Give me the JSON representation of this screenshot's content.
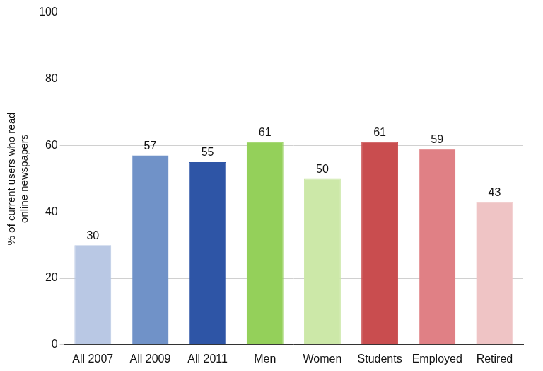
{
  "chart_data": {
    "type": "bar",
    "ylabel": [
      "% of current users who read",
      "online newspapers"
    ],
    "categories": [
      "All 2007",
      "All 2009",
      "All 2011",
      "Men",
      "Women",
      "Students",
      "Employed",
      "Retired"
    ],
    "values": [
      30,
      57,
      55,
      61,
      50,
      61,
      59,
      43
    ],
    "colors": [
      "#b9c8e4",
      "#7092c8",
      "#2e55a6",
      "#94d05a",
      "#cce8a8",
      "#c94d4f",
      "#e08085",
      "#efc4c5"
    ],
    "ylim": [
      0,
      100
    ],
    "yticks": [
      0,
      20,
      40,
      60,
      80,
      100
    ],
    "grid": true,
    "data_labels": true
  }
}
